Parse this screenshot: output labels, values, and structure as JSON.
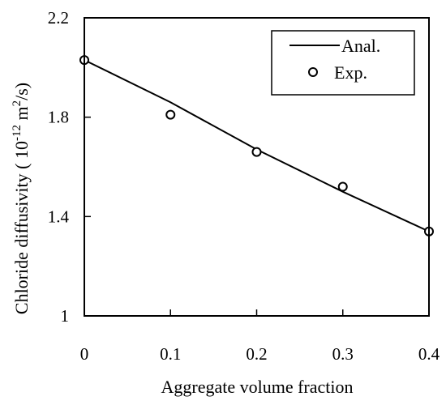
{
  "chart_data": {
    "type": "line",
    "xlabel": "Aggregate volume fraction",
    "ylabel_main": "Chloride diffusivity ( 10",
    "ylabel_exp": "-12",
    "ylabel_unit": " m",
    "ylabel_unit_exp": "2",
    "ylabel_tail": "/s)",
    "xlim": [
      0,
      0.4
    ],
    "ylim": [
      1,
      2.2
    ],
    "xticks": [
      0,
      0.1,
      0.2,
      0.3,
      0.4
    ],
    "xtick_labels": [
      "0",
      "0.1",
      "0.2",
      "0.3",
      "0.4"
    ],
    "yticks": [
      1,
      1.4,
      1.8,
      2.2
    ],
    "ytick_labels": [
      "1",
      "1.4",
      "1.8",
      "2.2"
    ],
    "grid": false,
    "legend_position": "top-right",
    "series": [
      {
        "name": "Anal.",
        "style": "line",
        "color": "#000000",
        "x": [
          0,
          0.1,
          0.2,
          0.3,
          0.4
        ],
        "y": [
          2.03,
          1.86,
          1.67,
          1.5,
          1.34
        ]
      },
      {
        "name": "Exp.",
        "style": "markers",
        "color": "#000000",
        "x": [
          0,
          0.1,
          0.2,
          0.3,
          0.4
        ],
        "y": [
          2.03,
          1.81,
          1.66,
          1.52,
          1.34
        ]
      }
    ]
  }
}
